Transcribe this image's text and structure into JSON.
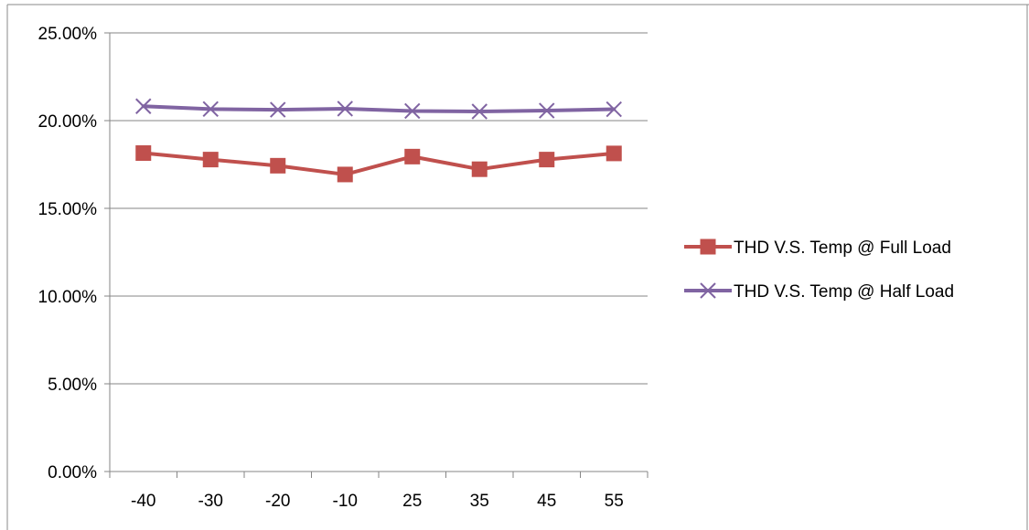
{
  "chart_data": {
    "type": "line",
    "categories": [
      "-40",
      "-30",
      "-20",
      "-10",
      "25",
      "35",
      "45",
      "55"
    ],
    "series": [
      {
        "name": "THD V.S. Temp @ Full Load",
        "values": [
          0.1815,
          0.1778,
          0.1743,
          0.1693,
          0.1795,
          0.1723,
          0.1778,
          0.1813
        ],
        "color": "#c0504d",
        "marker": "square"
      },
      {
        "name": "THD V.S. Temp @ Half Load",
        "values": [
          0.2082,
          0.2066,
          0.2062,
          0.2068,
          0.2055,
          0.2052,
          0.2057,
          0.2065
        ],
        "color": "#8064a2",
        "marker": "x"
      }
    ],
    "y_ticks": [
      "0.00%",
      "5.00%",
      "10.00%",
      "15.00%",
      "20.00%",
      "25.00%"
    ],
    "ylim": [
      0,
      0.25
    ],
    "grid": "horizontal",
    "legend_position": "right",
    "title": "",
    "xlabel": "",
    "ylabel": ""
  }
}
